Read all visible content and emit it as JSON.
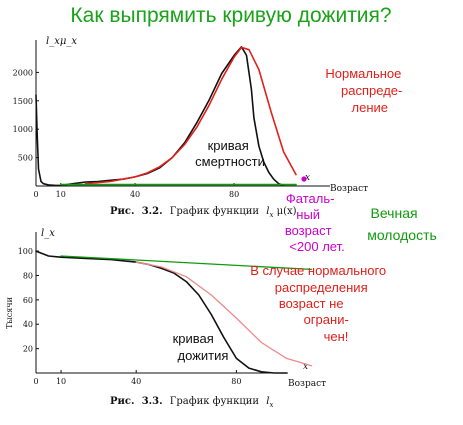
{
  "slide": {
    "title": "Как выпрямить кривую дожития?",
    "colors": {
      "title": "#1aa31a",
      "red": "#e0201b",
      "magenta": "#cc00cc",
      "green": "#0f9a0f",
      "black": "#111111",
      "pink": "#f08a8a"
    }
  },
  "chart_data": [
    {
      "type": "line",
      "title": "",
      "ylabel": "l_xμ_x",
      "xlabel": "Возраст",
      "x_marker": "x",
      "xlim": [
        0,
        105
      ],
      "ylim": [
        0,
        2500
      ],
      "x_ticks": [
        "0",
        "10",
        "40",
        "80"
      ],
      "y_ticks": [
        "500",
        "1000",
        "1500",
        "2000"
      ],
      "caption": {
        "prefix": "Рис.",
        "number": "3.2.",
        "text": "График функции",
        "formula": "l",
        "formula_sub": "x",
        "formula_tail": " μ(x)"
      },
      "series": [
        {
          "name": "кривая смертности",
          "color": "#111111",
          "x": [
            0,
            0.5,
            1,
            2,
            3,
            5,
            8,
            10,
            15,
            20,
            25,
            30,
            35,
            40,
            45,
            50,
            55,
            60,
            65,
            70,
            75,
            80,
            83,
            85,
            87,
            88,
            90,
            92,
            94,
            96,
            98,
            100
          ],
          "y": [
            1600,
            900,
            300,
            80,
            40,
            20,
            10,
            10,
            40,
            70,
            80,
            100,
            120,
            160,
            220,
            320,
            500,
            760,
            1120,
            1520,
            1980,
            2300,
            2450,
            2300,
            1700,
            1200,
            700,
            420,
            240,
            120,
            40,
            10
          ]
        },
        {
          "name": "Нормальное распределение",
          "color": "#e0201b",
          "x": [
            20,
            30,
            40,
            45,
            50,
            55,
            60,
            65,
            70,
            75,
            80,
            83,
            86,
            90,
            95,
            100,
            105
          ],
          "y": [
            40,
            80,
            160,
            230,
            340,
            500,
            730,
            1040,
            1430,
            1880,
            2270,
            2440,
            2400,
            2050,
            1300,
            600,
            200
          ]
        },
        {
          "name": "Вечная молодость",
          "color": "#0f9a0f",
          "x": [
            10,
            105
          ],
          "y": [
            25,
            25
          ]
        }
      ],
      "annotations": {
        "mortality_label": [
          "кривая",
          "смертности"
        ],
        "normal_label": [
          "Нормальное",
          "распреде-",
          "ление"
        ],
        "fatal_label": [
          "Фаталь-",
          "ный",
          "возраст",
          "<200 лет."
        ],
        "youth_label": [
          "Вечная",
          "молодость"
        ]
      }
    },
    {
      "type": "line",
      "title": "",
      "ylabel": "l_x",
      "ylabel_rotated": "Тысячи",
      "xlabel": "Возраст",
      "x_marker": "x",
      "xlim": [
        0,
        105
      ],
      "ylim": [
        0,
        105
      ],
      "x_ticks": [
        "0",
        "10",
        "40",
        "80"
      ],
      "y_ticks": [
        "20",
        "40",
        "60",
        "80",
        "100"
      ],
      "caption": {
        "prefix": "Рис.",
        "number": "3.3.",
        "text": "График функции",
        "formula": "l",
        "formula_sub": "x",
        "formula_tail": ""
      },
      "series": [
        {
          "name": "кривая дожития",
          "color": "#111111",
          "x": [
            0,
            5,
            10,
            20,
            30,
            40,
            45,
            50,
            55,
            60,
            65,
            70,
            75,
            80,
            85,
            90,
            95,
            100
          ],
          "y": [
            100,
            96,
            95,
            94,
            93,
            91,
            89,
            86,
            82,
            75,
            64,
            48,
            29,
            12,
            4,
            1,
            0,
            0
          ]
        },
        {
          "name": "В случае нормального распределения",
          "color": "#f08a8a",
          "x": [
            40,
            50,
            60,
            70,
            80,
            90,
            100,
            110
          ],
          "y": [
            91,
            87,
            79,
            64,
            45,
            25,
            12,
            6
          ]
        },
        {
          "name": "Вечная молодость",
          "color": "#0f9a0f",
          "x": [
            10,
            110
          ],
          "y": [
            96,
            85
          ]
        }
      ],
      "annotations": {
        "survival_label": [
          "кривая",
          "дожития"
        ],
        "normal_label": [
          "В случае нормального",
          "распределения",
          "возраст не",
          "ограни-",
          "чен!"
        ]
      }
    }
  ]
}
